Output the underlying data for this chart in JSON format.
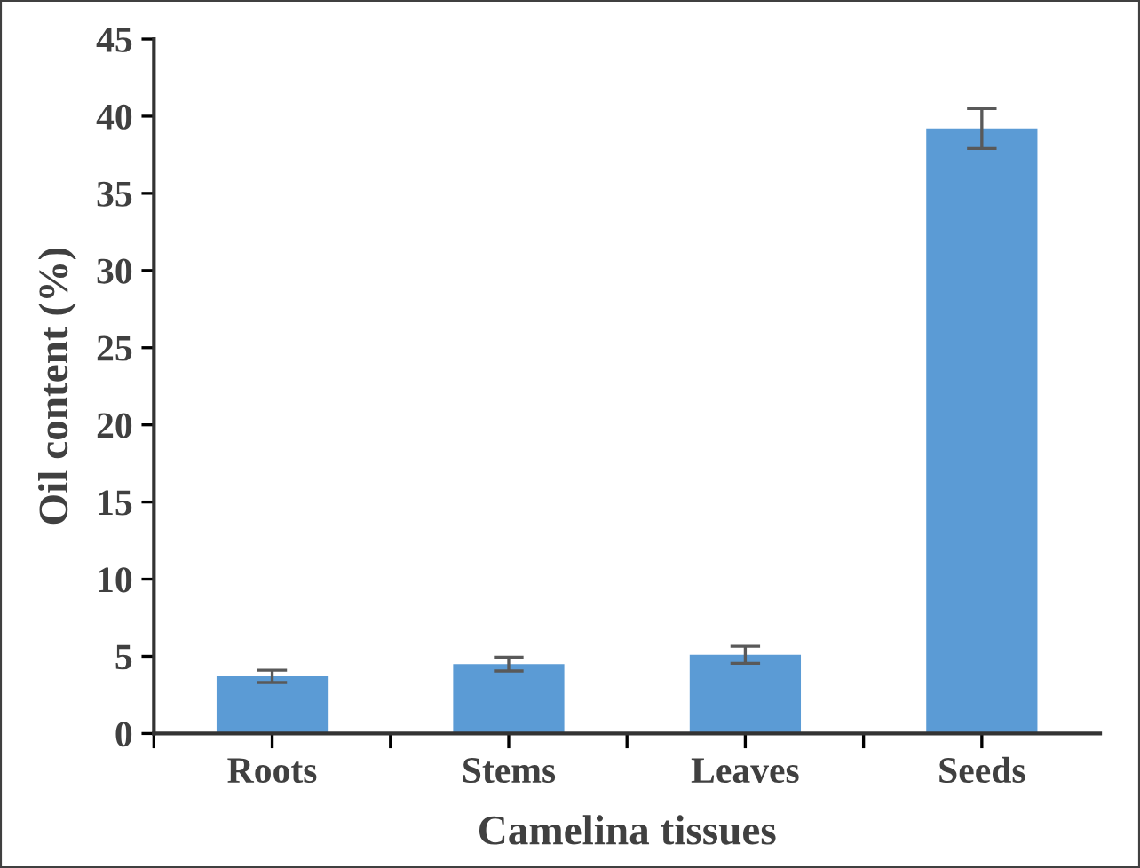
{
  "chart_data": {
    "type": "bar",
    "xlabel": "Camelina tissues",
    "ylabel": "Oil content (%)",
    "categories": [
      "Roots",
      "Stems",
      "Leaves",
      "Seeds"
    ],
    "values": [
      3.7,
      4.5,
      5.1,
      39.2
    ],
    "errors": [
      0.4,
      0.45,
      0.55,
      1.3
    ],
    "color": "#5b9bd5",
    "ylim": [
      0,
      45
    ],
    "yticks": [
      0,
      5,
      10,
      15,
      20,
      25,
      30,
      35,
      40,
      45
    ],
    "grid": false,
    "legend": false
  }
}
